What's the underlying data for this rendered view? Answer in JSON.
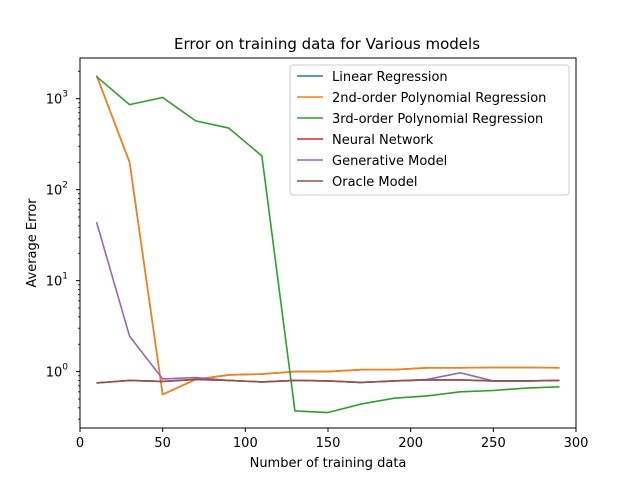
{
  "chart_data": {
    "type": "line",
    "title": "Error on training data for Various models",
    "xlabel": "Number of training data",
    "ylabel": "Average Error",
    "xscale": "linear",
    "yscale": "log",
    "xlim": [
      0,
      300
    ],
    "ylim": [
      0.24,
      2800
    ],
    "xticks": [
      0,
      50,
      100,
      150,
      200,
      250,
      300
    ],
    "yticks": [
      {
        "value": 1,
        "base": "10",
        "exp": "0"
      },
      {
        "value": 10,
        "base": "10",
        "exp": "1"
      },
      {
        "value": 100,
        "base": "10",
        "exp": "2"
      },
      {
        "value": 1000,
        "base": "10",
        "exp": "3"
      }
    ],
    "grid": false,
    "legend_position": "top-right",
    "x": [
      10,
      30,
      50,
      70,
      90,
      110,
      130,
      150,
      170,
      190,
      210,
      230,
      250,
      270,
      290
    ],
    "series": [
      {
        "name": "Linear Regression",
        "color": "#1f77b4",
        "values": [
          1800,
          200,
          0.56,
          0.82,
          0.92,
          0.94,
          1.0,
          1.0,
          1.05,
          1.05,
          1.1,
          1.1,
          1.11,
          1.11,
          1.1
        ]
      },
      {
        "name": "2nd-order Polynomial Regression",
        "color": "#ff7f0e",
        "values": [
          1800,
          200,
          0.56,
          0.82,
          0.92,
          0.94,
          1.0,
          1.0,
          1.05,
          1.05,
          1.1,
          1.1,
          1.11,
          1.11,
          1.1
        ]
      },
      {
        "name": "3rd-order Polynomial Regression",
        "color": "#2ca02c",
        "values": [
          1750,
          860,
          1030,
          570,
          475,
          235,
          0.37,
          0.355,
          0.44,
          0.51,
          0.54,
          0.6,
          0.62,
          0.66,
          0.68
        ]
      },
      {
        "name": "Neural Network",
        "color": "#d62728",
        "values": [
          0.75,
          0.8,
          0.78,
          0.82,
          0.8,
          0.77,
          0.8,
          0.79,
          0.76,
          0.79,
          0.81,
          0.81,
          0.79,
          0.79,
          0.8
        ]
      },
      {
        "name": "Generative Model",
        "color": "#9467bd",
        "values": [
          44,
          2.45,
          0.83,
          0.86,
          0.8,
          0.77,
          0.8,
          0.79,
          0.76,
          0.79,
          0.82,
          0.97,
          0.79,
          0.79,
          0.8
        ]
      },
      {
        "name": "Oracle Model",
        "color": "#8c564b",
        "values": [
          0.75,
          0.8,
          0.78,
          0.82,
          0.8,
          0.77,
          0.8,
          0.79,
          0.76,
          0.79,
          0.81,
          0.81,
          0.79,
          0.79,
          0.8
        ]
      }
    ]
  }
}
